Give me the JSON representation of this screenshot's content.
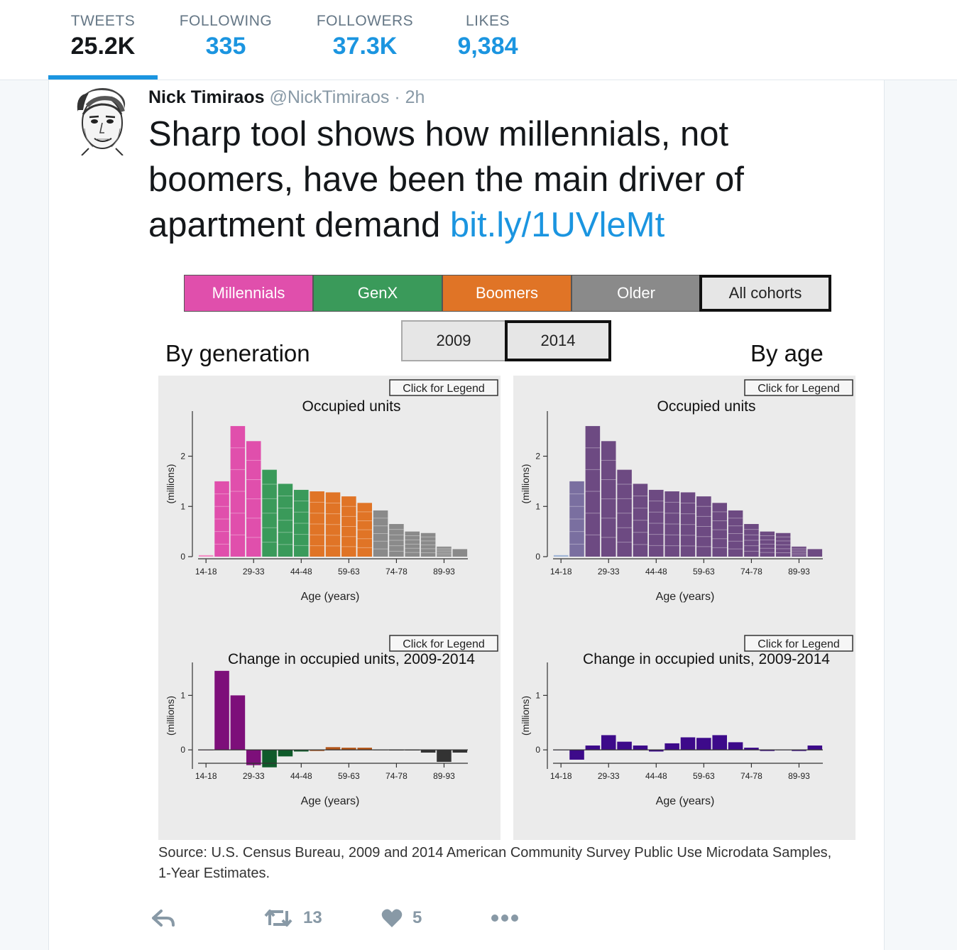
{
  "stats": [
    {
      "label": "TWEETS",
      "value": "25.2K"
    },
    {
      "label": "FOLLOWING",
      "value": "335"
    },
    {
      "label": "FOLLOWERS",
      "value": "37.3K"
    },
    {
      "label": "LIKES",
      "value": "9,384"
    }
  ],
  "tweet": {
    "name": "Nick Timiraos",
    "handle": "@NickTimiraos",
    "time": "· 2h",
    "text": "Sharp tool shows how millennials, not boomers, have been the main driver of apartment demand ",
    "link": "bit.ly/1UVleMt",
    "retweets": "13",
    "likes": "5"
  },
  "media": {
    "cohorts": [
      {
        "label": "Millennials",
        "color": "#e04fac"
      },
      {
        "label": "GenX",
        "color": "#3a9a5a"
      },
      {
        "label": "Boomers",
        "color": "#e07426"
      },
      {
        "label": "Older",
        "color": "#8a8a8a"
      },
      {
        "label": "All cohorts",
        "color": "#ffffff"
      }
    ],
    "years": [
      "2009",
      "2014"
    ],
    "left_title": "By generation",
    "right_title": "By age",
    "legend_button": "Click for Legend",
    "source": "Source: U.S. Census Bureau, 2009 and 2014 American Community Survey Public Use Microdata Samples, 1-Year Estimates."
  },
  "chart_data": [
    {
      "type": "bar",
      "title": "Occupied units",
      "xlabel": "Age (years)",
      "ylabel": "(millions)",
      "x_tick_labels": [
        "14-18",
        "29-33",
        "44-48",
        "59-63",
        "74-78",
        "89-93"
      ],
      "categories": [
        "14-18",
        "19-23",
        "24-28",
        "29-33",
        "34-38",
        "39-43",
        "44-48",
        "49-53",
        "54-58",
        "59-63",
        "64-68",
        "69-73",
        "74-78",
        "79-83",
        "84-88",
        "89-93",
        "94-98"
      ],
      "values": [
        0.03,
        1.5,
        2.6,
        2.3,
        1.73,
        1.45,
        1.33,
        1.3,
        1.28,
        1.2,
        1.07,
        0.92,
        0.65,
        0.5,
        0.47,
        0.2,
        0.15
      ],
      "bar_colors": [
        "#f48fc6",
        "#e04fac",
        "#e04fac",
        "#e04fac",
        "#3a9a5a",
        "#3a9a5a",
        "#3a9a5a",
        "#e07426",
        "#e07426",
        "#e07426",
        "#e07426",
        "#8a8a8a",
        "#8a8a8a",
        "#8a8a8a",
        "#8a8a8a",
        "#8a8a8a",
        "#8a8a8a"
      ],
      "ylim": [
        0,
        2.7
      ],
      "y_ticks": [
        0,
        1,
        2
      ]
    },
    {
      "type": "bar",
      "title": "Occupied units",
      "xlabel": "Age (years)",
      "ylabel": "(millions)",
      "x_tick_labels": [
        "14-18",
        "29-33",
        "44-48",
        "59-63",
        "74-78",
        "89-93"
      ],
      "categories": [
        "14-18",
        "19-23",
        "24-28",
        "29-33",
        "34-38",
        "39-43",
        "44-48",
        "49-53",
        "54-58",
        "59-63",
        "64-68",
        "69-73",
        "74-78",
        "79-83",
        "84-88",
        "89-93",
        "94-98"
      ],
      "values": [
        0.03,
        1.5,
        2.6,
        2.3,
        1.73,
        1.45,
        1.33,
        1.3,
        1.28,
        1.2,
        1.07,
        0.92,
        0.65,
        0.5,
        0.47,
        0.2,
        0.15
      ],
      "bar_colors": [
        "#9fb4d6",
        "#7a6fa0",
        "#6d4a82",
        "#6d4a82",
        "#6d4a82",
        "#6d4a82",
        "#6d4a82",
        "#6d4a82",
        "#6d4a82",
        "#6d4a82",
        "#6d4a82",
        "#6d4a82",
        "#6d4a82",
        "#6d4a82",
        "#6d4a82",
        "#6d4a82",
        "#6d4a82"
      ],
      "ylim": [
        0,
        2.7
      ],
      "y_ticks": [
        0,
        1,
        2
      ]
    },
    {
      "type": "bar",
      "title": "Change in occupied units, 2009-2014",
      "xlabel": "Age (years)",
      "ylabel": "(millions)",
      "x_tick_labels": [
        "14-18",
        "29-33",
        "44-48",
        "59-63",
        "74-78",
        "89-93"
      ],
      "categories": [
        "14-18",
        "19-23",
        "24-28",
        "29-33",
        "34-38",
        "39-43",
        "44-48",
        "49-53",
        "54-58",
        "59-63",
        "64-68",
        "69-73",
        "74-78",
        "79-83",
        "84-88",
        "89-93",
        "94-98"
      ],
      "values": [
        0,
        1.45,
        1.0,
        -0.28,
        -0.32,
        -0.12,
        -0.03,
        -0.02,
        0.05,
        0.04,
        0.04,
        0,
        -0.01,
        -0.01,
        -0.05,
        -0.22,
        -0.05
      ],
      "bar_colors": [
        "#7d0f7a",
        "#7d0f7a",
        "#7d0f7a",
        "#7d0f7a",
        "#0f5a2a",
        "#0f5a2a",
        "#0f5a2a",
        "#b3561a",
        "#b3561a",
        "#b3561a",
        "#b3561a",
        "#333333",
        "#333333",
        "#333333",
        "#333333",
        "#333333",
        "#333333"
      ],
      "ylim": [
        -0.35,
        1.5
      ],
      "y_ticks": [
        0,
        1
      ]
    },
    {
      "type": "bar",
      "title": "Change in occupied units, 2009-2014",
      "xlabel": "Age (years)",
      "ylabel": "(millions)",
      "x_tick_labels": [
        "14-18",
        "29-33",
        "44-48",
        "59-63",
        "74-78",
        "89-93"
      ],
      "categories": [
        "14-18",
        "19-23",
        "24-28",
        "29-33",
        "34-38",
        "39-43",
        "44-48",
        "49-53",
        "54-58",
        "59-63",
        "64-68",
        "69-73",
        "74-78",
        "79-83",
        "84-88",
        "89-93",
        "94-98"
      ],
      "values": [
        0,
        -0.18,
        0.08,
        0.27,
        0.15,
        0.08,
        -0.03,
        0.12,
        0.23,
        0.22,
        0.27,
        0.14,
        0.04,
        -0.02,
        0,
        -0.02,
        0.08
      ],
      "bar_colors": [
        "#3d0a8a",
        "#3d0a8a",
        "#3d0a8a",
        "#3d0a8a",
        "#3d0a8a",
        "#3d0a8a",
        "#3d0a8a",
        "#3d0a8a",
        "#3d0a8a",
        "#3d0a8a",
        "#3d0a8a",
        "#3d0a8a",
        "#3d0a8a",
        "#3d0a8a",
        "#3d0a8a",
        "#3d0a8a",
        "#3d0a8a"
      ],
      "ylim": [
        -0.35,
        1.5
      ],
      "y_ticks": [
        0,
        1
      ]
    }
  ]
}
